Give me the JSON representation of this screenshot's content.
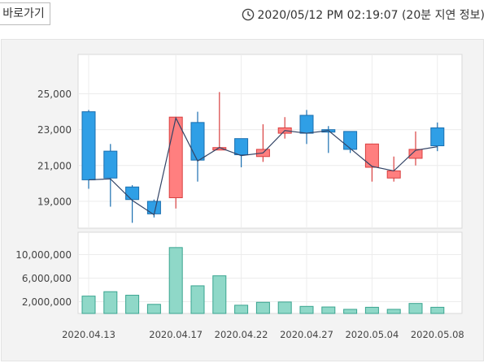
{
  "header": {
    "shortcut_label": "바로가기",
    "timestamp": "2020/05/12 PM 02:19:07 (20분 지연 정보)"
  },
  "colors": {
    "up_fill": "#ff7f7f",
    "up_stroke": "#d94040",
    "down_fill": "#2f9fe6",
    "down_stroke": "#1a6fb0",
    "volume_fill": "#8fd8c8",
    "volume_stroke": "#3aa590",
    "ma_line": "#334466"
  },
  "chart_data": [
    {
      "type": "candlestick",
      "yticks": [
        19000,
        21000,
        23000,
        25000
      ],
      "ylim": [
        17500,
        27200
      ],
      "candles": [
        {
          "o": 24000,
          "c": 20200,
          "h": 24100,
          "l": 19700
        },
        {
          "o": 21800,
          "c": 20300,
          "h": 22200,
          "l": 18700
        },
        {
          "o": 19800,
          "c": 19100,
          "h": 19900,
          "l": 17800
        },
        {
          "o": 19000,
          "c": 18300,
          "h": 19100,
          "l": 18100
        },
        {
          "o": 19200,
          "c": 23700,
          "h": 23700,
          "l": 18600
        },
        {
          "o": 23400,
          "c": 21300,
          "h": 24000,
          "l": 20100
        },
        {
          "o": 21900,
          "c": 22000,
          "h": 25100,
          "l": 21900
        },
        {
          "o": 22500,
          "c": 21600,
          "h": 22500,
          "l": 20900
        },
        {
          "o": 21500,
          "c": 21900,
          "h": 23300,
          "l": 21200
        },
        {
          "o": 22800,
          "c": 23100,
          "h": 23700,
          "l": 22500
        },
        {
          "o": 23800,
          "c": 22800,
          "h": 24100,
          "l": 22200
        },
        {
          "o": 23000,
          "c": 22900,
          "h": 23200,
          "l": 21700
        },
        {
          "o": 22900,
          "c": 21900,
          "h": 22900,
          "l": 21700
        },
        {
          "o": 20900,
          "c": 22200,
          "h": 22200,
          "l": 20100
        },
        {
          "o": 20300,
          "c": 20700,
          "h": 21500,
          "l": 20100
        },
        {
          "o": 21400,
          "c": 21900,
          "h": 22900,
          "l": 21000
        },
        {
          "o": 23100,
          "c": 22100,
          "h": 23400,
          "l": 21800
        }
      ],
      "moving_average": [
        20200,
        20250,
        19050,
        18250,
        23650,
        21250,
        22000,
        21550,
        21700,
        22950,
        22800,
        22950,
        21950,
        20950,
        20700,
        21850,
        22050
      ]
    },
    {
      "type": "bar",
      "yticks_labels": [
        "2,000,000",
        "6,000,000",
        "10,000,000"
      ],
      "yticks": [
        2000000,
        6000000,
        10000000
      ],
      "ylim": [
        0,
        13800000
      ],
      "values": [
        2950000,
        3700000,
        3100000,
        1550000,
        11200000,
        4700000,
        6400000,
        1400000,
        1900000,
        1950000,
        1200000,
        1100000,
        700000,
        1050000,
        700000,
        1700000,
        1050000
      ],
      "xtick_labels": [
        "2020.04.13",
        "2020.04.17",
        "2020.04.22",
        "2020.04.27",
        "2020.05.04",
        "2020.05.08"
      ],
      "xtick_indices": [
        0,
        4,
        7,
        10,
        13,
        16
      ]
    }
  ]
}
